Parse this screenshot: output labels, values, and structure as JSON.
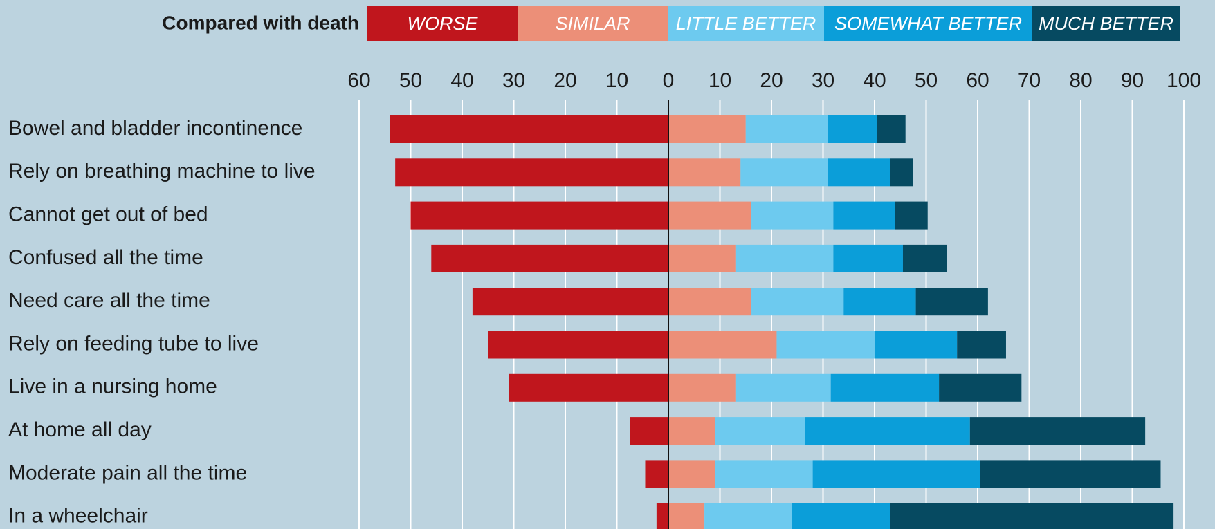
{
  "chart_data": {
    "type": "diverging_bar",
    "legend_title": "Compared with death",
    "categories": [
      "Bowel and bladder incontinence",
      "Rely on breathing machine to live",
      "Cannot get out of bed",
      "Confused all the time",
      "Need care all the time",
      "Rely on feeding tube to live",
      "Live in a nursing home",
      "At home all day",
      "Moderate pain all the time",
      "In a wheelchair"
    ],
    "series": [
      {
        "name": "WORSE",
        "color": "#c0161d",
        "values": [
          -54,
          -53,
          -50,
          -46,
          -38,
          -35,
          -31,
          -7.5,
          -4.5,
          -2.3
        ]
      },
      {
        "name": "SIMILAR",
        "color": "#ec8f78",
        "values": [
          15,
          14,
          16,
          13,
          16,
          21,
          13,
          9,
          9,
          7
        ]
      },
      {
        "name": "LITTLE BETTER",
        "color": "#6dcaef",
        "values": [
          16,
          17,
          16,
          19,
          18,
          19,
          18.5,
          17.5,
          19,
          17
        ]
      },
      {
        "name": "SOMEWHAT BETTER",
        "color": "#0b9ed9",
        "values": [
          9.5,
          12,
          12,
          13.5,
          14,
          16,
          21,
          32,
          32.5,
          19
        ]
      },
      {
        "name": "MUCH BETTER",
        "color": "#064a61",
        "values": [
          5.5,
          4.5,
          6.3,
          8.5,
          14,
          9.5,
          16,
          34,
          35,
          55
        ]
      }
    ],
    "xlim": [
      -60,
      100
    ],
    "xticks": [
      {
        "value": -60,
        "label": "60"
      },
      {
        "value": -50,
        "label": "50"
      },
      {
        "value": -40,
        "label": "40"
      },
      {
        "value": -30,
        "label": "30"
      },
      {
        "value": -20,
        "label": "20"
      },
      {
        "value": -10,
        "label": "10"
      },
      0,
      10,
      20,
      30,
      40,
      50,
      60,
      70,
      80,
      90,
      100
    ],
    "grid": true
  }
}
